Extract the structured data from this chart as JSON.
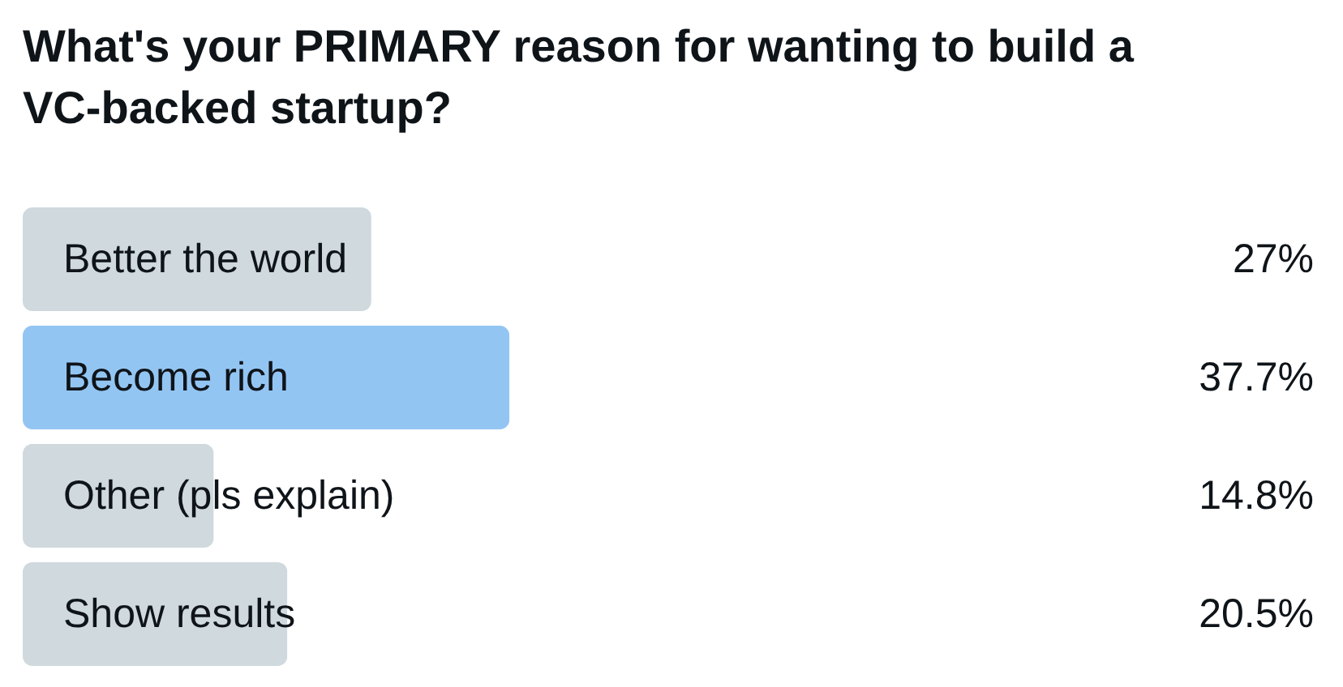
{
  "chart_data": {
    "type": "bar",
    "orientation": "horizontal",
    "title": "What's your PRIMARY reason for wanting to build a VC-backed startup?",
    "categories": [
      "Better the world",
      "Become rich",
      "Other (pls explain)",
      "Show results"
    ],
    "values": [
      27,
      37.7,
      14.8,
      20.5
    ],
    "value_labels": [
      "27%",
      "37.7%",
      "14.8%",
      "20.5%"
    ],
    "colors": [
      "#cfd9de",
      "#93c5f3",
      "#cfd9de",
      "#cfd9de"
    ],
    "xlim": [
      0,
      100
    ]
  }
}
